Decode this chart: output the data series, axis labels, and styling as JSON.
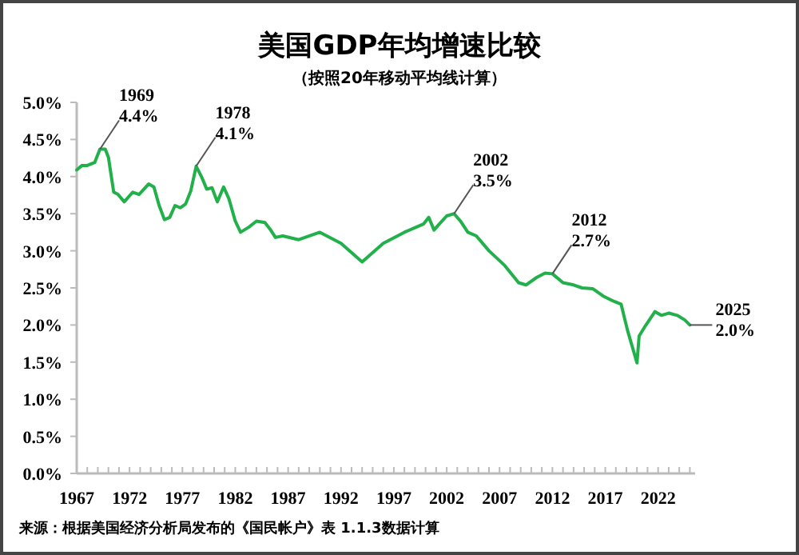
{
  "chart_data": {
    "type": "line",
    "title": "美国GDP年均增速比较",
    "subtitle": "（按照20年移动平均线计算）",
    "x": [
      1967,
      1967.5,
      1968,
      1968.7,
      1969.2,
      1969.7,
      1970,
      1970.5,
      1970.9,
      1971.5,
      1972.3,
      1972.9,
      1973.8,
      1974.3,
      1974.8,
      1975.3,
      1975.8,
      1976.3,
      1976.8,
      1977.3,
      1977.8,
      1978.3,
      1978.8,
      1979.3,
      1979.8,
      1980.3,
      1980.9,
      1981.4,
      1982,
      1982.5,
      1983.3,
      1984,
      1984.8,
      1985.3,
      1985.8,
      1986.5,
      1988,
      1990,
      1992,
      1994,
      1996,
      1998,
      1999.8,
      2000.3,
      2000.8,
      2001.3,
      2002,
      2002.7,
      2003.3,
      2004,
      2004.8,
      2006,
      2007.5,
      2008.8,
      2009.5,
      2010.5,
      2011.3,
      2012,
      2013,
      2014,
      2014.8,
      2015.8,
      2016.8,
      2017.8,
      2018.5,
      2019.1,
      2020,
      2020.2,
      2020.8,
      2021.7,
      2022.3,
      2023,
      2023.8,
      2024.5,
      2025
    ],
    "series": [
      {
        "color": "#22b04b",
        "values": [
          4.09,
          4.15,
          4.15,
          4.19,
          4.37,
          4.37,
          4.26,
          3.79,
          3.76,
          3.66,
          3.79,
          3.76,
          3.9,
          3.86,
          3.61,
          3.42,
          3.45,
          3.61,
          3.58,
          3.63,
          3.81,
          4.14,
          4.0,
          3.83,
          3.85,
          3.66,
          3.86,
          3.7,
          3.4,
          3.25,
          3.32,
          3.4,
          3.38,
          3.29,
          3.18,
          3.2,
          3.15,
          3.25,
          3.1,
          2.85,
          3.1,
          3.25,
          3.36,
          3.45,
          3.28,
          3.36,
          3.47,
          3.5,
          3.4,
          3.25,
          3.2,
          3.0,
          2.8,
          2.57,
          2.54,
          2.64,
          2.7,
          2.69,
          2.57,
          2.54,
          2.5,
          2.49,
          2.39,
          2.32,
          2.28,
          1.93,
          1.49,
          1.85,
          1.99,
          2.18,
          2.13,
          2.16,
          2.13,
          2.07,
          2.0
        ]
      }
    ],
    "xlim": [
      1967,
      2025.5
    ],
    "xticks": [
      1967,
      {
        "value": 1968,
        "label": null
      },
      {
        "value": 1969,
        "label": null
      },
      {
        "value": 1970,
        "label": null
      },
      {
        "value": 1971,
        "label": null
      },
      1972,
      {
        "value": 1973,
        "label": null
      },
      {
        "value": 1974,
        "label": null
      },
      {
        "value": 1975,
        "label": null
      },
      {
        "value": 1976,
        "label": null
      },
      1977,
      {
        "value": 1978,
        "label": null
      },
      {
        "value": 1979,
        "label": null
      },
      {
        "value": 1980,
        "label": null
      },
      {
        "value": 1981,
        "label": null
      },
      1982,
      {
        "value": 1983,
        "label": null
      },
      {
        "value": 1984,
        "label": null
      },
      {
        "value": 1985,
        "label": null
      },
      {
        "value": 1986,
        "label": null
      },
      1987,
      {
        "value": 1988,
        "label": null
      },
      {
        "value": 1989,
        "label": null
      },
      {
        "value": 1990,
        "label": null
      },
      {
        "value": 1991,
        "label": null
      },
      1992,
      {
        "value": 1993,
        "label": null
      },
      {
        "value": 1994,
        "label": null
      },
      {
        "value": 1995,
        "label": null
      },
      {
        "value": 1996,
        "label": null
      },
      1997,
      {
        "value": 1998,
        "label": null
      },
      {
        "value": 1999,
        "label": null
      },
      {
        "value": 2000,
        "label": null
      },
      {
        "value": 2001,
        "label": null
      },
      2002,
      {
        "value": 2003,
        "label": null
      },
      {
        "value": 2004,
        "label": null
      },
      {
        "value": 2005,
        "label": null
      },
      {
        "value": 2006,
        "label": null
      },
      2007,
      {
        "value": 2008,
        "label": null
      },
      {
        "value": 2009,
        "label": null
      },
      {
        "value": 2010,
        "label": null
      },
      {
        "value": 2011,
        "label": null
      },
      2012,
      {
        "value": 2013,
        "label": null
      },
      {
        "value": 2014,
        "label": null
      },
      {
        "value": 2015,
        "label": null
      },
      {
        "value": 2016,
        "label": null
      },
      2017,
      {
        "value": 2018,
        "label": null
      },
      {
        "value": 2019,
        "label": null
      },
      {
        "value": 2020,
        "label": null
      },
      {
        "value": 2021,
        "label": null
      },
      2022,
      {
        "value": 2023,
        "label": null
      },
      {
        "value": 2024,
        "label": null
      },
      {
        "value": 2025,
        "label": null
      }
    ],
    "ylim": [
      0,
      5
    ],
    "yticks": [
      {
        "value": 0,
        "label": "0.0%"
      },
      {
        "value": 0.5,
        "label": "0.5%"
      },
      {
        "value": 1,
        "label": "1.0%"
      },
      {
        "value": 1.5,
        "label": "1.5%"
      },
      {
        "value": 2,
        "label": "2.0%"
      },
      {
        "value": 2.5,
        "label": "2.5%"
      },
      {
        "value": 3,
        "label": "3.0%"
      },
      {
        "value": 3.5,
        "label": "3.5%"
      },
      {
        "value": 4,
        "label": "4.0%"
      },
      {
        "value": 4.5,
        "label": "4.5%"
      },
      {
        "value": 5,
        "label": "5.0%"
      }
    ],
    "annotations": [
      {
        "text": "1969\n4.4%",
        "x": 1969.2,
        "y": 4.37
      },
      {
        "text": "1978\n4.1%",
        "x": 1978.3,
        "y": 4.14
      },
      {
        "text": "2002\n3.5%",
        "x": 2002.7,
        "y": 3.5
      },
      {
        "text": "2012\n2.7%",
        "x": 2012,
        "y": 2.69
      },
      {
        "text": "2025\n2.0%",
        "x": 2025,
        "y": 2.0
      },
      "来源：根据美国经济分析局发布的《国民帐户》表 1.1.3数据计算"
    ],
    "line_style": "solid"
  }
}
